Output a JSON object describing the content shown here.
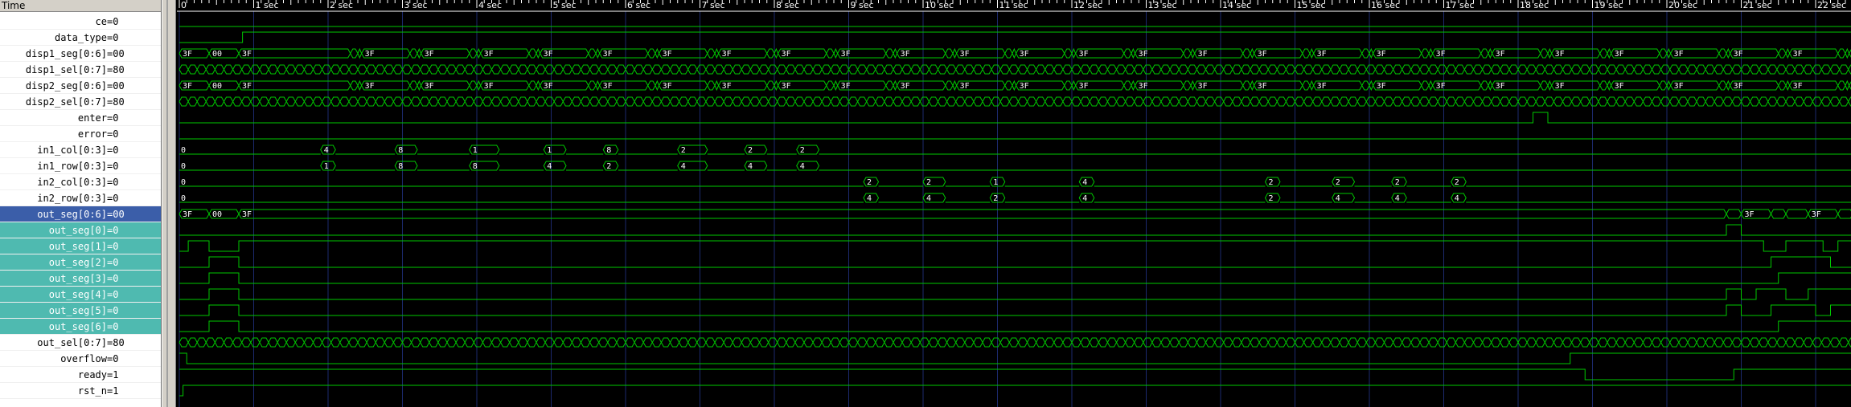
{
  "header": {
    "label": "Time"
  },
  "signals": [
    {
      "name": "ce",
      "value": "0",
      "kind": "bit",
      "steps": [
        [
          0,
          0
        ]
      ]
    },
    {
      "name": "data_type",
      "value": "0",
      "kind": "bit",
      "steps": [
        [
          0,
          0
        ],
        [
          0.85,
          1
        ]
      ]
    },
    {
      "name": "disp1_seg[0:6]",
      "value": "00",
      "kind": "bus",
      "pattern": "seg",
      "labels": [
        "3F",
        "00",
        "3F"
      ]
    },
    {
      "name": "disp1_sel[0:7]",
      "value": "80",
      "kind": "bus",
      "pattern": "fast"
    },
    {
      "name": "disp2_seg[0:6]",
      "value": "00",
      "kind": "bus",
      "pattern": "seg",
      "labels": [
        "3F",
        "00",
        "3F"
      ]
    },
    {
      "name": "disp2_sel[0:7]",
      "value": "80",
      "kind": "bus",
      "pattern": "fast"
    },
    {
      "name": "enter",
      "value": "0",
      "kind": "bit",
      "steps": [
        [
          0,
          0
        ],
        [
          18.2,
          1
        ],
        [
          18.4,
          0
        ]
      ]
    },
    {
      "name": "error",
      "value": "0",
      "kind": "bit",
      "steps": [
        [
          0,
          0
        ]
      ]
    },
    {
      "name": "in1_col[0:3]",
      "value": "0",
      "kind": "bus",
      "pattern": "pulses",
      "segments": [
        [
          0,
          1.9,
          "0"
        ],
        [
          1.9,
          2.1,
          "4"
        ],
        [
          2.1,
          2.9,
          "0"
        ],
        [
          2.9,
          3.2,
          "8"
        ],
        [
          3.2,
          3.9,
          "0"
        ],
        [
          3.9,
          4.3,
          "1"
        ],
        [
          4.3,
          4.9,
          "0"
        ],
        [
          4.9,
          5.2,
          "1"
        ],
        [
          5.2,
          5.7,
          "0"
        ],
        [
          5.7,
          5.9,
          "8"
        ],
        [
          5.9,
          6.7,
          "0"
        ],
        [
          6.7,
          7.1,
          "2"
        ],
        [
          7.1,
          7.6,
          "0"
        ],
        [
          7.6,
          7.9,
          "2"
        ],
        [
          7.9,
          8.3,
          "0"
        ],
        [
          8.3,
          8.6,
          "2"
        ],
        [
          8.6,
          22.9,
          "0"
        ]
      ]
    },
    {
      "name": "in1_row[0:3]",
      "value": "0",
      "kind": "bus",
      "pattern": "pulses",
      "segments": [
        [
          0,
          1.9,
          "0"
        ],
        [
          1.9,
          2.1,
          "1"
        ],
        [
          2.1,
          2.9,
          "0"
        ],
        [
          2.9,
          3.2,
          "8"
        ],
        [
          3.2,
          3.9,
          "0"
        ],
        [
          3.9,
          4.3,
          "8"
        ],
        [
          4.3,
          4.9,
          "0"
        ],
        [
          4.9,
          5.2,
          "4"
        ],
        [
          5.2,
          5.7,
          "0"
        ],
        [
          5.7,
          5.9,
          "2"
        ],
        [
          5.9,
          6.7,
          "0"
        ],
        [
          6.7,
          7.1,
          "4"
        ],
        [
          7.1,
          7.6,
          "0"
        ],
        [
          7.6,
          7.9,
          "4"
        ],
        [
          7.9,
          8.3,
          "0"
        ],
        [
          8.3,
          8.6,
          "4"
        ],
        [
          8.6,
          22.9,
          "0"
        ]
      ]
    },
    {
      "name": "in2_col[0:3]",
      "value": "0",
      "kind": "bus",
      "pattern": "pulses",
      "segments": [
        [
          0,
          9.2,
          "0"
        ],
        [
          9.2,
          9.4,
          "2"
        ],
        [
          9.4,
          10.0,
          "0"
        ],
        [
          10.0,
          10.3,
          "2"
        ],
        [
          10.3,
          10.9,
          "0"
        ],
        [
          10.9,
          11.1,
          "1"
        ],
        [
          11.1,
          12.1,
          "0"
        ],
        [
          12.1,
          12.3,
          "4"
        ],
        [
          12.3,
          14.6,
          "0"
        ],
        [
          14.6,
          14.8,
          "2"
        ],
        [
          14.8,
          15.5,
          "0"
        ],
        [
          15.5,
          15.8,
          "2"
        ],
        [
          15.8,
          16.3,
          "0"
        ],
        [
          16.3,
          16.5,
          "2"
        ],
        [
          16.5,
          17.1,
          "0"
        ],
        [
          17.1,
          17.3,
          "2"
        ],
        [
          17.3,
          22.9,
          "0"
        ]
      ]
    },
    {
      "name": "in2_row[0:3]",
      "value": "0",
      "kind": "bus",
      "pattern": "pulses",
      "segments": [
        [
          0,
          9.2,
          "0"
        ],
        [
          9.2,
          9.4,
          "4"
        ],
        [
          9.4,
          10.0,
          "0"
        ],
        [
          10.0,
          10.3,
          "4"
        ],
        [
          10.3,
          10.9,
          "0"
        ],
        [
          10.9,
          11.1,
          "2"
        ],
        [
          11.1,
          12.1,
          "0"
        ],
        [
          12.1,
          12.3,
          "4"
        ],
        [
          12.3,
          14.6,
          "0"
        ],
        [
          14.6,
          14.8,
          "2"
        ],
        [
          14.8,
          15.5,
          "0"
        ],
        [
          15.5,
          15.8,
          "4"
        ],
        [
          15.8,
          16.3,
          "0"
        ],
        [
          16.3,
          16.5,
          "4"
        ],
        [
          16.5,
          17.1,
          "0"
        ],
        [
          17.1,
          17.3,
          "4"
        ],
        [
          17.3,
          22.9,
          "0"
        ]
      ]
    },
    {
      "name": "out_seg[0:6]",
      "value": "00",
      "kind": "bus",
      "pattern": "outseg",
      "selected": true,
      "labels": [
        "3F",
        "00",
        "3F",
        "3F",
        "3F"
      ]
    },
    {
      "name": "out_seg[0]",
      "value": "0",
      "kind": "bit",
      "sub": true,
      "steps": [
        [
          0,
          0
        ],
        [
          20.8,
          1
        ],
        [
          21.0,
          0
        ]
      ]
    },
    {
      "name": "out_seg[1]",
      "value": "0",
      "kind": "bit",
      "sub": true,
      "steps": [
        [
          0,
          0
        ],
        [
          0.12,
          1
        ],
        [
          0.4,
          0
        ],
        [
          0.8,
          1
        ],
        [
          20.9,
          1
        ],
        [
          21.3,
          0
        ],
        [
          21.6,
          1
        ],
        [
          22.1,
          0
        ],
        [
          22.3,
          1
        ]
      ]
    },
    {
      "name": "out_seg[2]",
      "value": "0",
      "kind": "bit",
      "sub": true,
      "steps": [
        [
          0,
          0
        ],
        [
          0.4,
          1
        ],
        [
          0.8,
          0
        ],
        [
          21.3,
          0
        ],
        [
          21.4,
          1
        ],
        [
          22.1,
          1
        ],
        [
          22.2,
          0
        ]
      ]
    },
    {
      "name": "out_seg[3]",
      "value": "0",
      "kind": "bit",
      "sub": true,
      "steps": [
        [
          0,
          0
        ],
        [
          0.4,
          1
        ],
        [
          0.8,
          0
        ],
        [
          21.4,
          0
        ],
        [
          21.5,
          1
        ],
        [
          22.6,
          1
        ],
        [
          22.7,
          0
        ]
      ]
    },
    {
      "name": "out_seg[4]",
      "value": "0",
      "kind": "bit",
      "sub": true,
      "steps": [
        [
          0,
          0
        ],
        [
          0.4,
          1
        ],
        [
          0.8,
          0
        ],
        [
          20.8,
          1
        ],
        [
          21.0,
          0
        ],
        [
          21.2,
          1
        ],
        [
          21.6,
          0
        ],
        [
          21.9,
          1
        ],
        [
          22.5,
          0
        ],
        [
          22.7,
          1
        ]
      ]
    },
    {
      "name": "out_seg[5]",
      "value": "0",
      "kind": "bit",
      "sub": true,
      "steps": [
        [
          0,
          0
        ],
        [
          0.4,
          1
        ],
        [
          0.8,
          0
        ],
        [
          20.8,
          1
        ],
        [
          21.0,
          0
        ],
        [
          21.4,
          1
        ],
        [
          22.0,
          0
        ],
        [
          22.2,
          1
        ]
      ]
    },
    {
      "name": "out_seg[6]",
      "value": "0",
      "kind": "bit",
      "sub": true,
      "steps": [
        [
          0,
          0
        ],
        [
          0.4,
          1
        ],
        [
          0.8,
          0
        ],
        [
          21.3,
          0
        ],
        [
          21.5,
          1
        ],
        [
          22.5,
          0
        ],
        [
          22.7,
          1
        ]
      ]
    },
    {
      "name": "out_sel[0:7]",
      "value": "80",
      "kind": "bus",
      "pattern": "fast"
    },
    {
      "name": "overflow",
      "value": "0",
      "kind": "bit",
      "steps": [
        [
          0,
          1
        ],
        [
          0.1,
          0
        ],
        [
          18.6,
          0
        ],
        [
          18.7,
          1
        ],
        [
          22.9,
          1
        ]
      ]
    },
    {
      "name": "ready",
      "value": "1",
      "kind": "bit",
      "steps": [
        [
          0,
          1
        ],
        [
          18.8,
          1
        ],
        [
          18.9,
          0
        ],
        [
          20.8,
          0
        ],
        [
          20.9,
          1
        ]
      ]
    },
    {
      "name": "rst_n",
      "value": "1",
      "kind": "bit",
      "steps": [
        [
          0,
          0
        ],
        [
          0.05,
          1
        ]
      ]
    }
  ],
  "timeline": {
    "ticks": [
      "0",
      "1 sec",
      "2 sec",
      "3 sec",
      "4 sec",
      "5 sec",
      "6 sec",
      "7 sec",
      "8 sec",
      "9 sec",
      "10 sec",
      "11 sec",
      "12 sec",
      "13 sec",
      "14 sec",
      "15 sec",
      "16 sec",
      "17 sec",
      "18 sec",
      "19 sec",
      "20 sec",
      "21 sec",
      "22 sec"
    ],
    "range": [
      0,
      22.9
    ]
  },
  "colors": {
    "background": "#000000",
    "waveform": "#00c800",
    "grid": "#1c2a6e",
    "text": "#ffffff",
    "selected_row": "#3b5ea9",
    "sub_row": "#4fbab0"
  }
}
